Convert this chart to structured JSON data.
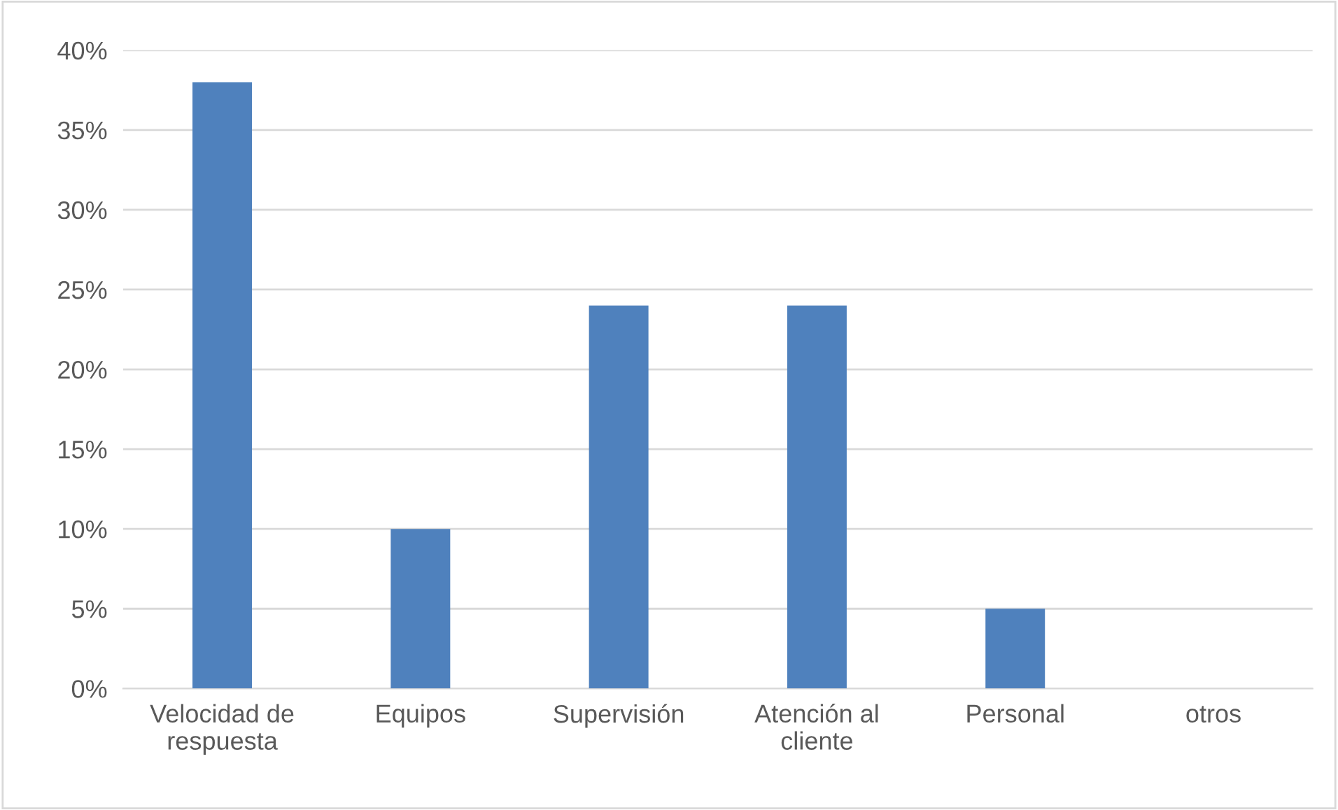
{
  "chart_data": {
    "type": "bar",
    "categories": [
      "Velocidad de\nrespuesta",
      "Equipos",
      "Supervisión",
      "Atención al\ncliente",
      "Personal",
      "otros"
    ],
    "values": [
      38,
      10,
      24,
      24,
      5,
      0
    ],
    "color": "#4f81bd",
    "ylim": [
      0,
      40
    ],
    "yticks": [
      {
        "value": 0,
        "label": "0%"
      },
      {
        "value": 5,
        "label": "5%"
      },
      {
        "value": 10,
        "label": "10%"
      },
      {
        "value": 15,
        "label": "15%"
      },
      {
        "value": 20,
        "label": "20%"
      },
      {
        "value": 25,
        "label": "25%"
      },
      {
        "value": 30,
        "label": "30%"
      },
      {
        "value": 35,
        "label": "35%"
      },
      {
        "value": 40,
        "label": "40%"
      }
    ],
    "grid": "y",
    "legend": false
  }
}
